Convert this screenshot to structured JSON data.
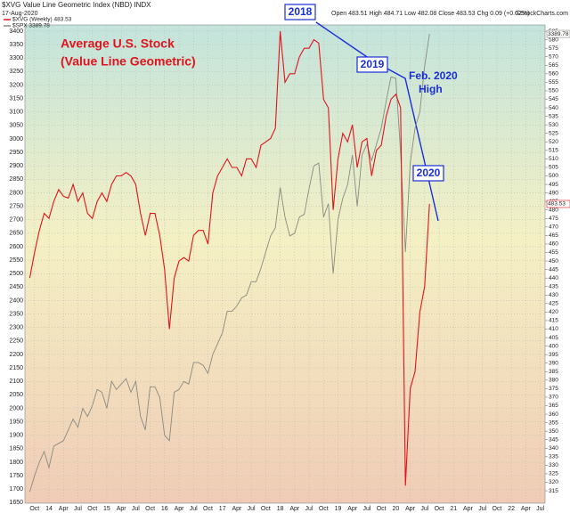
{
  "chart_data": {
    "type": "line",
    "title": "$XVG Value Line Geometric Index (NBD) INDX",
    "date": "17-Aug-2020",
    "quote": "Open 483.51 High 484.71 Low 482.08 Close 483.53 Chg 0.09 (+0.02%)",
    "source": "©StockCharts.com",
    "annotations": [
      "Average U.S. Stock",
      "(Value Line Geometric)",
      "2018",
      "2019",
      "Feb. 2020",
      "High",
      "2020"
    ],
    "last_labels": [
      "483.53",
      "3389.78"
    ],
    "x": [
      "2013-09",
      "2013-10",
      "2013-11",
      "2013-12",
      "2014-01",
      "2014-02",
      "2014-03",
      "2014-04",
      "2014-05",
      "2014-06",
      "2014-07",
      "2014-08",
      "2014-09",
      "2014-10",
      "2014-11",
      "2014-12",
      "2015-01",
      "2015-02",
      "2015-03",
      "2015-04",
      "2015-05",
      "2015-06",
      "2015-07",
      "2015-08",
      "2015-09",
      "2015-10",
      "2015-11",
      "2015-12",
      "2016-01",
      "2016-02",
      "2016-03",
      "2016-04",
      "2016-05",
      "2016-06",
      "2016-07",
      "2016-08",
      "2016-09",
      "2016-10",
      "2016-11",
      "2016-12",
      "2017-01",
      "2017-02",
      "2017-03",
      "2017-04",
      "2017-05",
      "2017-06",
      "2017-07",
      "2017-08",
      "2017-09",
      "2017-10",
      "2017-11",
      "2017-12",
      "2018-01",
      "2018-02",
      "2018-03",
      "2018-04",
      "2018-05",
      "2018-06",
      "2018-07",
      "2018-08",
      "2018-09",
      "2018-10",
      "2018-11",
      "2018-12",
      "2019-01",
      "2019-02",
      "2019-03",
      "2019-04",
      "2019-05",
      "2019-06",
      "2019-07",
      "2019-08",
      "2019-09",
      "2019-10",
      "2019-11",
      "2019-12",
      "2020-01",
      "2020-02",
      "2020-03",
      "2020-04",
      "2020-05",
      "2020-06",
      "2020-07",
      "2020-08"
    ],
    "series": [
      {
        "name": "$XVG (Weekly) 483.53",
        "color": "#e0141e",
        "axis": "y2",
        "values": [
          440,
          455,
          468,
          478,
          475,
          485,
          492,
          488,
          487,
          495,
          485,
          490,
          478,
          475,
          485,
          490,
          485,
          495,
          500,
          500,
          502,
          500,
          495,
          478,
          465,
          478,
          478,
          465,
          445,
          410,
          440,
          450,
          452,
          450,
          465,
          468,
          468,
          460,
          490,
          500,
          505,
          510,
          505,
          505,
          500,
          510,
          510,
          505,
          518,
          520,
          522,
          528,
          585,
          555,
          560,
          560,
          570,
          575,
          575,
          580,
          578,
          545,
          540,
          480,
          510,
          525,
          520,
          530,
          505,
          520,
          522,
          500,
          515,
          518,
          535,
          545,
          548,
          540,
          318,
          375,
          385,
          420,
          435,
          483.53
        ]
      },
      {
        "name": "$SPX 3389.78",
        "color": "#8a8a80",
        "values": [
          1690,
          1750,
          1800,
          1840,
          1780,
          1860,
          1870,
          1880,
          1920,
          1960,
          1930,
          2000,
          1970,
          2010,
          2070,
          2060,
          2000,
          2100,
          2070,
          2090,
          2110,
          2060,
          2100,
          1970,
          1920,
          2080,
          2080,
          2040,
          1900,
          1880,
          2060,
          2070,
          2100,
          2090,
          2170,
          2170,
          2160,
          2130,
          2200,
          2240,
          2280,
          2360,
          2360,
          2380,
          2410,
          2420,
          2470,
          2470,
          2520,
          2580,
          2640,
          2670,
          2820,
          2710,
          2640,
          2650,
          2710,
          2720,
          2815,
          2900,
          2910,
          2710,
          2760,
          2500,
          2700,
          2780,
          2830,
          2940,
          2750,
          2940,
          2980,
          2920,
          2980,
          3040,
          3140,
          3230,
          3225,
          2950,
          2580,
          2910,
          3040,
          3100,
          3270,
          3389.78
        ]
      }
    ],
    "xlim": [
      "2013-08",
      "2022-08"
    ],
    "xticks": [
      {
        "value": "2013-10",
        "label": "Oct"
      },
      {
        "value": "2014-01",
        "label": "14"
      },
      {
        "value": "2014-04",
        "label": "Apr"
      },
      {
        "value": "2014-07",
        "label": "Jul"
      },
      {
        "value": "2014-10",
        "label": "Oct"
      },
      {
        "value": "2015-01",
        "label": "15"
      },
      {
        "value": "2015-04",
        "label": "Apr"
      },
      {
        "value": "2015-07",
        "label": "Jul"
      },
      {
        "value": "2015-10",
        "label": "Oct"
      },
      {
        "value": "2016-01",
        "label": "16"
      },
      {
        "value": "2016-04",
        "label": "Apr"
      },
      {
        "value": "2016-07",
        "label": "Jul"
      },
      {
        "value": "2016-10",
        "label": "Oct"
      },
      {
        "value": "2017-01",
        "label": "17"
      },
      {
        "value": "2017-04",
        "label": "Apr"
      },
      {
        "value": "2017-07",
        "label": "Jul"
      },
      {
        "value": "2017-10",
        "label": "Oct"
      },
      {
        "value": "2018-01",
        "label": "18"
      },
      {
        "value": "2018-04",
        "label": "Apr"
      },
      {
        "value": "2018-07",
        "label": "Jul"
      },
      {
        "value": "2018-10",
        "label": "Oct"
      },
      {
        "value": "2019-01",
        "label": "19"
      },
      {
        "value": "2019-04",
        "label": "Apr"
      },
      {
        "value": "2019-07",
        "label": "Jul"
      },
      {
        "value": "2019-10",
        "label": "Oct"
      },
      {
        "value": "2020-01",
        "label": "20"
      },
      {
        "value": "2020-04",
        "label": "Apr"
      },
      {
        "value": "2020-07",
        "label": "Jul"
      },
      {
        "value": "2020-10",
        "label": "Oct"
      },
      {
        "value": "2021-01",
        "label": "21"
      },
      {
        "value": "2021-04",
        "label": "Apr"
      },
      {
        "value": "2021-07",
        "label": "Jul"
      },
      {
        "value": "2021-10",
        "label": "Oct"
      },
      {
        "value": "2022-01",
        "label": "22"
      },
      {
        "value": "2022-04",
        "label": "Apr"
      },
      {
        "value": "2022-07",
        "label": "Jul"
      }
    ],
    "ylim": [
      1648,
      3423
    ],
    "yticks": [
      1650,
      1700,
      1750,
      1800,
      1850,
      1900,
      1950,
      2000,
      2050,
      2100,
      2150,
      2200,
      2250,
      2300,
      2350,
      2400,
      2450,
      2500,
      2550,
      2600,
      2650,
      2700,
      2750,
      2800,
      2850,
      2900,
      2950,
      3000,
      3050,
      3100,
      3150,
      3200,
      3250,
      3300,
      3350,
      3400
    ],
    "y2lim": [
      307.7,
      588.7
    ],
    "y2ticks": [
      315,
      320,
      325,
      330,
      335,
      340,
      345,
      350,
      355,
      360,
      365,
      370,
      375,
      380,
      385,
      390,
      395,
      400,
      405,
      410,
      415,
      420,
      425,
      430,
      435,
      440,
      445,
      450,
      455,
      460,
      465,
      470,
      475,
      480,
      485,
      490,
      495,
      500,
      505,
      510,
      515,
      520,
      525,
      530,
      535,
      540,
      545,
      550,
      555,
      560,
      565,
      570,
      575,
      580,
      585
    ],
    "grid": true
  }
}
